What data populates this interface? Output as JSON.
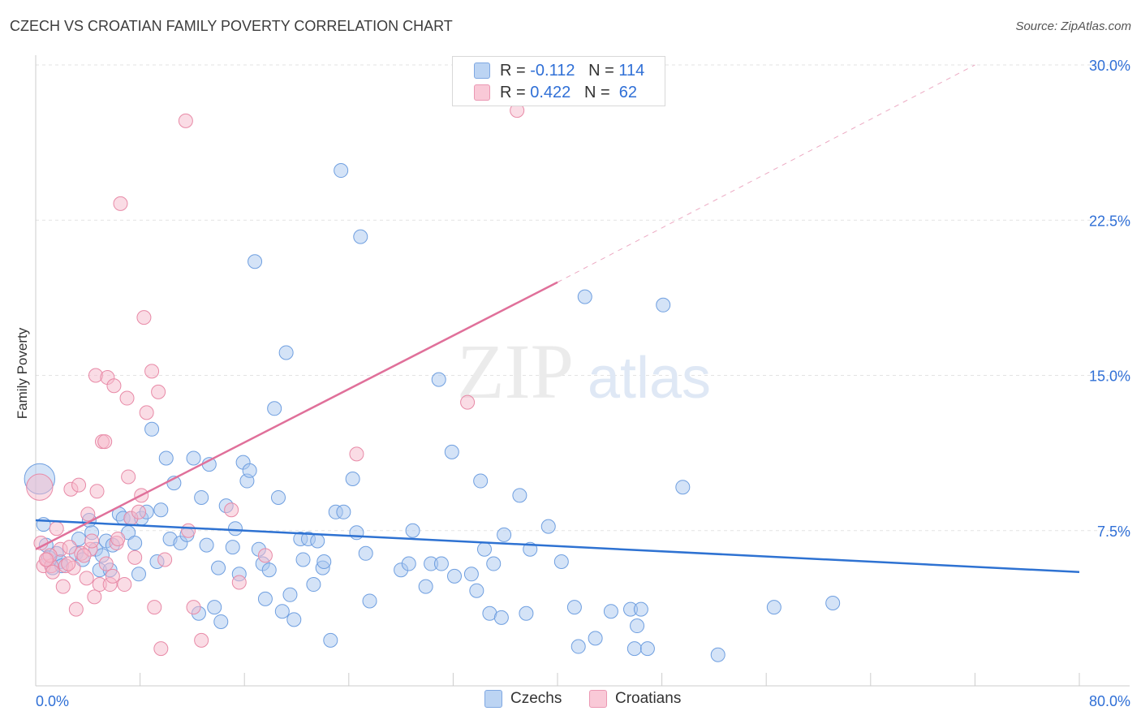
{
  "title": "CZECH VS CROATIAN FAMILY POVERTY CORRELATION CHART",
  "source": "Source: ZipAtlas.com",
  "watermark": {
    "zip": "ZIP",
    "atlas": "atlas"
  },
  "legend": {
    "rows": [
      {
        "r_label": "R =",
        "r_value": "-0.112",
        "n_label": "N =",
        "n_value": "114"
      },
      {
        "r_label": "R =",
        "r_value": "0.422",
        "n_label": "N =",
        "n_value": "62"
      }
    ]
  },
  "bottom_legend": {
    "czechs": "Czechs",
    "croatians": "Croatians"
  },
  "colors": {
    "czech_fill": "#a9c8f0",
    "czech_stroke": "#6f9fe0",
    "czech_line": "#2e72d2",
    "croatian_fill": "#f5b9cb",
    "croatian_stroke": "#e88aa7",
    "croatian_line": "#e0709a",
    "tick_label": "#2f6fd6",
    "grid": "#e3e3e3"
  },
  "chart_data": {
    "type": "scatter",
    "xlabel": "",
    "ylabel": "Family Poverty",
    "xlim": [
      0,
      80
    ],
    "ylim": [
      0,
      30
    ],
    "x_tick_labels": [
      {
        "v": 0,
        "t": "0.0%"
      },
      {
        "v": 80,
        "t": "80.0%"
      }
    ],
    "y_tick_labels": [
      {
        "v": 7.5,
        "t": "7.5%"
      },
      {
        "v": 15,
        "t": "15.0%"
      },
      {
        "v": 22.5,
        "t": "22.5%"
      },
      {
        "v": 30,
        "t": "30.0%"
      }
    ],
    "grid": true,
    "series": [
      {
        "name": "Czechs",
        "trend": {
          "x0": 0,
          "y0": 8.0,
          "x1": 80,
          "y1": 5.5
        },
        "points": [
          [
            0.3,
            10.0,
            2.2
          ],
          [
            0.6,
            7.8,
            1
          ],
          [
            0.8,
            6.8,
            1
          ],
          [
            1.0,
            6.2,
            1
          ],
          [
            1.3,
            5.7,
            1
          ],
          [
            1.6,
            6.4,
            1
          ],
          [
            1.9,
            6.0,
            1
          ],
          [
            2.0,
            5.8,
            1
          ],
          [
            3.3,
            7.1,
            1
          ],
          [
            3.1,
            6.4,
            1
          ],
          [
            3.6,
            6.1,
            1
          ],
          [
            4.1,
            8.0,
            1
          ],
          [
            4.3,
            7.4,
            1
          ],
          [
            4.6,
            6.6,
            1
          ],
          [
            4.9,
            5.6,
            1
          ],
          [
            5.1,
            6.3,
            1
          ],
          [
            5.4,
            7.0,
            1
          ],
          [
            5.7,
            5.6,
            1
          ],
          [
            5.9,
            6.8,
            1
          ],
          [
            6.4,
            8.3,
            1
          ],
          [
            6.7,
            8.1,
            1
          ],
          [
            7.1,
            7.4,
            1
          ],
          [
            7.3,
            8.1,
            1
          ],
          [
            7.6,
            6.9,
            1
          ],
          [
            7.9,
            5.4,
            1
          ],
          [
            8.1,
            8.1,
            1
          ],
          [
            8.5,
            8.4,
            1
          ],
          [
            8.9,
            12.4,
            1
          ],
          [
            9.3,
            6.0,
            1
          ],
          [
            9.6,
            8.5,
            1
          ],
          [
            10.0,
            11.0,
            1
          ],
          [
            10.3,
            7.1,
            1
          ],
          [
            10.6,
            9.8,
            1
          ],
          [
            11.1,
            6.9,
            1
          ],
          [
            11.6,
            7.3,
            1
          ],
          [
            12.1,
            11.0,
            1
          ],
          [
            12.5,
            3.5,
            1
          ],
          [
            12.7,
            9.1,
            1
          ],
          [
            13.1,
            6.8,
            1
          ],
          [
            13.3,
            10.7,
            1
          ],
          [
            13.7,
            3.8,
            1
          ],
          [
            14.0,
            5.7,
            1
          ],
          [
            14.2,
            3.1,
            1
          ],
          [
            14.6,
            8.7,
            1
          ],
          [
            15.1,
            6.7,
            1
          ],
          [
            15.3,
            7.6,
            1
          ],
          [
            15.6,
            5.4,
            1
          ],
          [
            15.9,
            10.8,
            1
          ],
          [
            16.2,
            9.9,
            1
          ],
          [
            16.4,
            10.4,
            1
          ],
          [
            16.8,
            20.5,
            1
          ],
          [
            17.1,
            6.6,
            1
          ],
          [
            17.4,
            5.9,
            1
          ],
          [
            17.6,
            4.2,
            1
          ],
          [
            17.9,
            5.6,
            1
          ],
          [
            18.3,
            13.4,
            1
          ],
          [
            18.6,
            9.1,
            1
          ],
          [
            18.9,
            3.6,
            1
          ],
          [
            19.2,
            16.1,
            1
          ],
          [
            19.5,
            4.4,
            1
          ],
          [
            19.8,
            3.2,
            1
          ],
          [
            20.3,
            7.1,
            1
          ],
          [
            20.5,
            6.1,
            1
          ],
          [
            20.9,
            7.1,
            1
          ],
          [
            21.3,
            4.9,
            1
          ],
          [
            21.6,
            7.0,
            1
          ],
          [
            22.0,
            5.7,
            1
          ],
          [
            22.1,
            6.0,
            1
          ],
          [
            22.6,
            2.2,
            1
          ],
          [
            23.0,
            8.4,
            1
          ],
          [
            23.4,
            24.9,
            1
          ],
          [
            23.6,
            8.4,
            1
          ],
          [
            24.3,
            10.0,
            1
          ],
          [
            24.9,
            21.7,
            1
          ],
          [
            24.6,
            7.4,
            1
          ],
          [
            25.3,
            6.4,
            1
          ],
          [
            25.6,
            4.1,
            1
          ],
          [
            28.0,
            5.6,
            1
          ],
          [
            28.6,
            5.9,
            1
          ],
          [
            28.9,
            7.5,
            1
          ],
          [
            29.9,
            4.8,
            1
          ],
          [
            30.3,
            5.9,
            1
          ],
          [
            30.9,
            14.8,
            1
          ],
          [
            31.1,
            5.9,
            1
          ],
          [
            31.9,
            11.3,
            1
          ],
          [
            32.1,
            5.3,
            1
          ],
          [
            33.4,
            5.4,
            1
          ],
          [
            33.8,
            4.6,
            1
          ],
          [
            34.1,
            9.9,
            1
          ],
          [
            34.4,
            6.6,
            1
          ],
          [
            34.8,
            3.5,
            1
          ],
          [
            35.1,
            5.9,
            1
          ],
          [
            35.7,
            3.3,
            1
          ],
          [
            35.9,
            7.3,
            1
          ],
          [
            37.1,
            9.2,
            1
          ],
          [
            37.6,
            3.5,
            1
          ],
          [
            37.9,
            6.6,
            1
          ],
          [
            39.3,
            7.7,
            1
          ],
          [
            40.3,
            6.0,
            1
          ],
          [
            41.3,
            3.8,
            1
          ],
          [
            41.6,
            1.9,
            1
          ],
          [
            42.1,
            18.8,
            1
          ],
          [
            42.9,
            2.3,
            1
          ],
          [
            44.1,
            3.6,
            1
          ],
          [
            45.6,
            3.7,
            1
          ],
          [
            45.9,
            1.8,
            1
          ],
          [
            46.1,
            2.9,
            1
          ],
          [
            46.4,
            3.7,
            1
          ],
          [
            46.9,
            1.8,
            1
          ],
          [
            48.1,
            18.4,
            1
          ],
          [
            49.6,
            9.6,
            1
          ],
          [
            52.3,
            1.5,
            1
          ],
          [
            56.6,
            3.8,
            1
          ],
          [
            61.1,
            4.0,
            1
          ]
        ]
      },
      {
        "name": "Croatians",
        "trend": {
          "x0": 0,
          "y0": 6.6,
          "x1": 40,
          "y1": 19.5
        },
        "dash": {
          "x0": 40,
          "y0": 19.5,
          "x1": 72,
          "y1": 30.0
        },
        "points": [
          [
            0.3,
            9.6,
            1.9
          ],
          [
            0.4,
            6.9,
            1
          ],
          [
            0.6,
            5.8,
            1
          ],
          [
            0.9,
            6.1,
            1
          ],
          [
            1.2,
            5.8,
            1
          ],
          [
            1.3,
            5.5,
            1
          ],
          [
            1.6,
            7.6,
            1
          ],
          [
            1.9,
            6.6,
            1
          ],
          [
            2.1,
            4.8,
            1
          ],
          [
            2.3,
            5.8,
            1
          ],
          [
            2.7,
            9.5,
            1
          ],
          [
            2.9,
            5.7,
            1
          ],
          [
            3.1,
            3.7,
            1
          ],
          [
            3.3,
            9.7,
            1
          ],
          [
            3.5,
            6.4,
            1
          ],
          [
            3.9,
            5.2,
            1
          ],
          [
            4.0,
            8.3,
            1
          ],
          [
            4.2,
            6.6,
            1
          ],
          [
            4.5,
            4.3,
            1
          ],
          [
            4.6,
            15.0,
            1
          ],
          [
            4.7,
            9.4,
            1
          ],
          [
            4.9,
            4.9,
            1
          ],
          [
            5.1,
            11.8,
            1
          ],
          [
            5.3,
            11.8,
            1
          ],
          [
            5.4,
            5.9,
            1
          ],
          [
            5.5,
            14.9,
            1
          ],
          [
            5.7,
            4.9,
            1
          ],
          [
            6.0,
            14.5,
            1
          ],
          [
            6.2,
            6.9,
            1
          ],
          [
            6.5,
            23.3,
            1
          ],
          [
            6.8,
            4.9,
            1
          ],
          [
            7.0,
            13.9,
            1
          ],
          [
            7.1,
            10.1,
            1
          ],
          [
            7.3,
            8.1,
            1
          ],
          [
            7.6,
            6.2,
            1
          ],
          [
            7.9,
            8.4,
            1
          ],
          [
            8.1,
            9.2,
            1
          ],
          [
            8.3,
            17.8,
            1
          ],
          [
            8.5,
            13.2,
            1
          ],
          [
            8.9,
            15.2,
            1
          ],
          [
            9.1,
            3.8,
            1
          ],
          [
            9.4,
            14.2,
            1
          ],
          [
            9.6,
            1.8,
            1
          ],
          [
            9.9,
            6.1,
            1
          ],
          [
            11.5,
            27.3,
            1
          ],
          [
            11.7,
            7.5,
            1
          ],
          [
            12.1,
            3.8,
            1
          ],
          [
            12.7,
            2.2,
            1
          ],
          [
            15.0,
            8.5,
            1
          ],
          [
            15.6,
            5.0,
            1
          ],
          [
            17.6,
            6.3,
            1
          ],
          [
            24.6,
            11.2,
            1
          ],
          [
            33.1,
            13.7,
            1
          ],
          [
            36.9,
            27.8,
            1
          ],
          [
            1.1,
            6.3,
            1
          ],
          [
            2.6,
            6.7,
            1
          ],
          [
            4.3,
            7.0,
            1
          ],
          [
            5.9,
            5.3,
            1
          ],
          [
            6.3,
            7.1,
            1
          ],
          [
            2.5,
            5.9,
            1
          ],
          [
            0.8,
            6.1,
            1
          ],
          [
            3.7,
            6.3,
            1
          ]
        ]
      }
    ]
  }
}
